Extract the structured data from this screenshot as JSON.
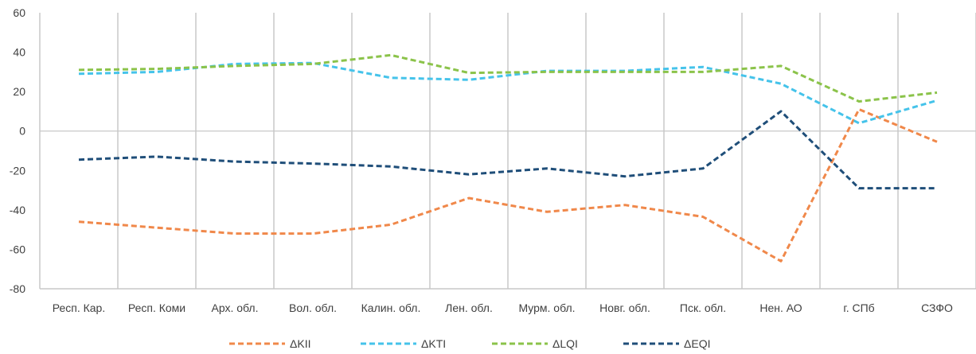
{
  "chart_data": {
    "type": "line",
    "title": "",
    "xlabel": "",
    "ylabel": "",
    "categories": [
      "Респ. Кар.",
      "Респ. Коми",
      "Арх. обл.",
      "Вол. обл.",
      "Калин. обл.",
      "Лен. обл.",
      "Мурм. обл.",
      "Новг. обл.",
      "Пск. обл.",
      "Нен. АО",
      "г. СПб",
      "СЗФО"
    ],
    "ylim": [
      -80,
      60
    ],
    "yticks": [
      -80,
      -60,
      -40,
      -20,
      0,
      20,
      40,
      60
    ],
    "grid": "vertical",
    "legend": "bottom",
    "series": [
      {
        "name": "ΔKII",
        "color": "#F0884A",
        "values": [
          -46,
          -49,
          -52,
          -52,
          -47.5,
          -34,
          -41,
          -37.5,
          -43.5,
          -66,
          11,
          -5.5
        ]
      },
      {
        "name": "ΔKTI",
        "color": "#45C3EA",
        "values": [
          29,
          30,
          34,
          34.5,
          27,
          26,
          30.5,
          30.5,
          32.5,
          24,
          4,
          15.5
        ]
      },
      {
        "name": "ΔLQI",
        "color": "#8BC34A",
        "values": [
          31,
          31.5,
          33,
          34,
          38.5,
          29.5,
          30,
          30,
          30,
          33,
          15,
          19.5
        ]
      },
      {
        "name": "ΔEQI",
        "color": "#1F4E79",
        "values": [
          -14.5,
          -13,
          -15.5,
          -16.5,
          -18,
          -22,
          -19,
          -23,
          -19,
          10,
          -29,
          -29
        ]
      }
    ]
  }
}
